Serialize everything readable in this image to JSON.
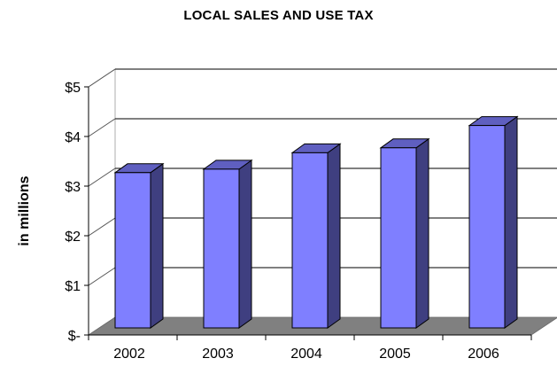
{
  "chart_data": {
    "type": "bar",
    "title": "LOCAL SALES AND USE TAX",
    "ylabel": "in millions",
    "xlabel": "",
    "categories": [
      "2002",
      "2003",
      "2004",
      "2005",
      "2006"
    ],
    "values": [
      3.2,
      3.27,
      3.6,
      3.7,
      4.15
    ],
    "ylim": [
      0,
      5
    ],
    "y_ticks": [
      0,
      1,
      2,
      3,
      4,
      5
    ],
    "y_tick_labels": [
      "$-",
      "$1",
      "$2",
      "$3",
      "$4",
      "$5"
    ],
    "grid": true,
    "legend": "none",
    "three_d": true
  },
  "colors": {
    "bar_front": "#7F7FFF",
    "bar_side": "#3F3F80",
    "bar_top": "#5F5FC0",
    "floor": "#808080",
    "grid": "#000000"
  }
}
